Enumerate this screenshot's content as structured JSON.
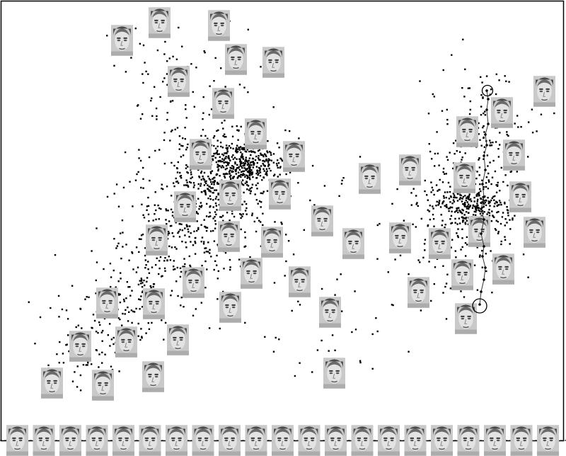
{
  "figure": {
    "kind": "2d-embedding-scatter-with-face-thumbnails",
    "point_color": "#000000",
    "frame_color": "#000000",
    "background": "#ffffff",
    "thumbnail_palette": [
      "#4a4a4a",
      "#8c8c8c",
      "#c4c4c4",
      "#e6e6e6"
    ],
    "clusters": [
      {
        "id": "left",
        "point_count": 1400
      },
      {
        "id": "right",
        "point_count": 600
      }
    ],
    "highlighted_points": 2,
    "connecting_path": true,
    "face_thumbnails_in_plot": 47,
    "face_strip_count": 21
  }
}
